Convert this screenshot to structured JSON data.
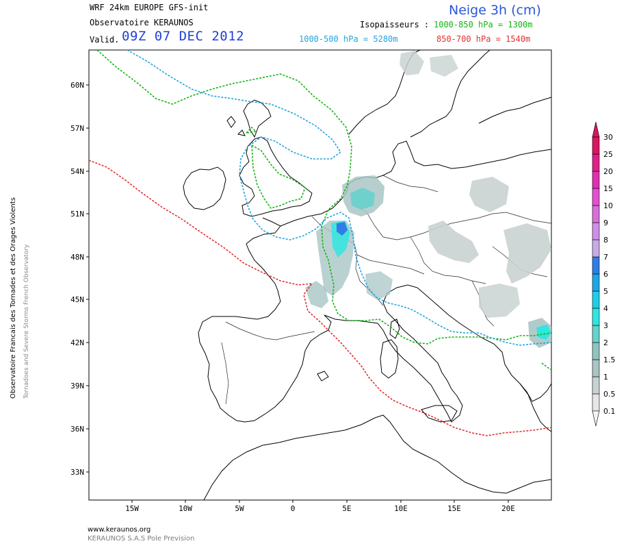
{
  "header": {
    "model_line": "WRF 24km EUROPE   GFS-init",
    "observatory": "Observatoire KERAUNOS",
    "valid_label": "Valid.",
    "valid_time": "09Z 07 DEC 2012",
    "product_title": "Neige 3h (cm)",
    "isopaisseurs_label": "Isopaisseurs :",
    "iso_1000_850": "1000-850 hPa = 1300m",
    "iso_1000_500": "1000-500 hPa = 5280m",
    "iso_850_700": "850-700 hPa = 1540m"
  },
  "side_text": {
    "primary": "Observatoire Francais des Tornades et des Orages Violents",
    "secondary": "Tornadoes and Severe Storms French Observatory"
  },
  "map": {
    "lat_labels": [
      "60N",
      "57N",
      "54N",
      "51N",
      "48N",
      "45N",
      "42N",
      "39N",
      "36N",
      "33N"
    ],
    "lon_labels": [
      "15W",
      "10W",
      "5W",
      "0",
      "5E",
      "10E",
      "15E",
      "20E"
    ],
    "isoline_colors": {
      "1000_850": "#12b412",
      "1000_500": "#1ea3e0",
      "850_700": "#e03030"
    }
  },
  "legend": {
    "levels": [
      "0.1",
      "0.5",
      "1",
      "1.5",
      "2",
      "3",
      "4",
      "5",
      "6",
      "7",
      "8",
      "9",
      "10",
      "15",
      "20",
      "25",
      "30"
    ],
    "colors": [
      "#e6e6e6",
      "#c9d2d2",
      "#a9c5c5",
      "#8fc5c0",
      "#66d2cc",
      "#2fe6e0",
      "#1fcde8",
      "#1ea6e6",
      "#2f7de6",
      "#c9a9e6",
      "#cf8fe6",
      "#d86fd8",
      "#e34fd0",
      "#e02fb0",
      "#e01f8a",
      "#d9165e"
    ]
  },
  "footer": {
    "url": "www.keraunos.org",
    "company": "KERAUNOS S.A.S Pole Prevision"
  }
}
